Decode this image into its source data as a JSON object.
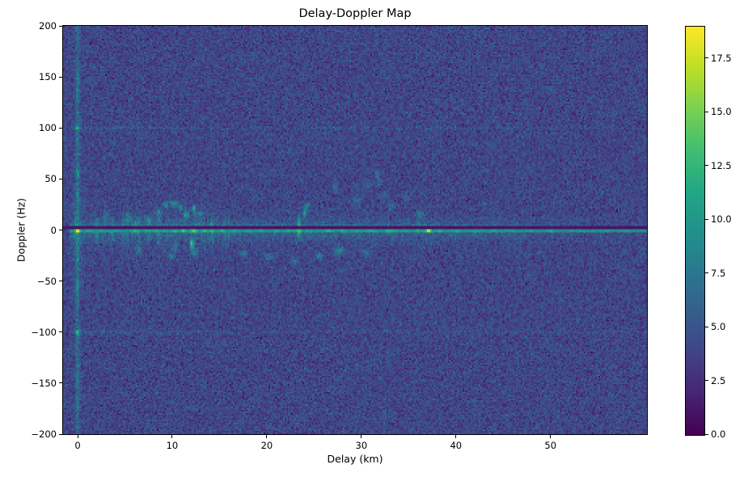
{
  "chart_data": {
    "type": "heatmap",
    "title": "Delay-Doppler Map",
    "xlabel": "Delay (km)",
    "ylabel": "Doppler (Hz)",
    "colormap": "viridis",
    "x_range_km": [
      -1.54,
      60.2
    ],
    "y_range_hz": [
      -200,
      200
    ],
    "x_ticks": [
      0,
      10,
      20,
      30,
      40,
      50
    ],
    "x_tick_labels": [
      "0",
      "10",
      "20",
      "30",
      "40",
      "50"
    ],
    "y_ticks": [
      200,
      150,
      100,
      50,
      0,
      -50,
      -100,
      -150,
      -200
    ],
    "y_tick_labels": [
      "200",
      "150",
      "100",
      "50",
      "0",
      "−50",
      "−100",
      "−150",
      "−200"
    ],
    "colorbar": {
      "vmin": 0.0,
      "vmax": 19.0,
      "ticks": [
        0.0,
        2.5,
        5.0,
        7.5,
        10.0,
        12.5,
        15.0,
        17.5
      ],
      "tick_labels": [
        "0.0",
        "2.5",
        "5.0",
        "7.5",
        "10.0",
        "12.5",
        "15.0",
        "17.5"
      ]
    },
    "colormap_stops": [
      [
        0.0,
        68,
        1,
        84
      ],
      [
        0.1,
        72,
        36,
        117
      ],
      [
        0.2,
        65,
        68,
        135
      ],
      [
        0.3,
        53,
        95,
        141
      ],
      [
        0.4,
        42,
        120,
        142
      ],
      [
        0.5,
        33,
        145,
        140
      ],
      [
        0.6,
        34,
        168,
        132
      ],
      [
        0.7,
        66,
        190,
        113
      ],
      [
        0.8,
        122,
        209,
        81
      ],
      [
        0.9,
        189,
        223,
        38
      ],
      [
        1.0,
        253,
        231,
        37
      ]
    ],
    "noise_floor": {
      "mean": 4.0,
      "std": 1.05,
      "seed": 1234
    },
    "features": {
      "zero_doppler_ridge": {
        "doppler_hz": -1,
        "base_value": 9.5,
        "hotspots": [
          [
            0.0,
            9.5,
            0.25
          ],
          [
            1.2,
            2.0,
            0.3
          ],
          [
            2.5,
            1.5,
            0.3
          ],
          [
            4.0,
            1.0,
            0.4
          ],
          [
            6.1,
            3.0,
            0.3
          ],
          [
            7.3,
            1.5,
            0.3
          ],
          [
            8.3,
            2.0,
            0.3
          ],
          [
            9.2,
            1.5,
            0.3
          ],
          [
            10.3,
            3.0,
            0.3
          ],
          [
            11.2,
            3.5,
            0.3
          ],
          [
            12.3,
            4.5,
            0.35
          ],
          [
            13.4,
            3.0,
            0.3
          ],
          [
            14.2,
            2.0,
            0.3
          ],
          [
            15.3,
            2.5,
            0.25
          ],
          [
            16.5,
            1.0,
            0.3
          ],
          [
            18.0,
            1.2,
            0.4
          ],
          [
            19.5,
            1.2,
            0.4
          ],
          [
            21.0,
            1.5,
            0.3
          ],
          [
            22.3,
            2.0,
            0.3
          ],
          [
            23.4,
            4.0,
            0.25
          ],
          [
            24.5,
            1.5,
            0.3
          ],
          [
            26.5,
            2.0,
            0.4
          ],
          [
            28.0,
            1.5,
            0.4
          ],
          [
            29.5,
            1.5,
            0.3
          ],
          [
            31.0,
            2.0,
            0.4
          ],
          [
            33.0,
            2.5,
            0.4
          ],
          [
            34.5,
            1.5,
            0.3
          ],
          [
            36.0,
            2.0,
            0.3
          ],
          [
            37.1,
            7.5,
            0.3
          ],
          [
            38.3,
            2.0,
            0.3
          ],
          [
            40.0,
            1.5,
            0.4
          ],
          [
            42.0,
            1.0,
            0.4
          ],
          [
            44.0,
            1.5,
            0.4
          ],
          [
            46.0,
            1.0,
            0.4
          ],
          [
            48.0,
            1.0,
            0.4
          ],
          [
            50.0,
            1.0,
            0.4
          ],
          [
            53.0,
            0.8,
            0.4
          ],
          [
            56.0,
            0.8,
            0.4
          ],
          [
            58.0,
            0.8,
            0.4
          ]
        ]
      },
      "zero_doppler_notch": {
        "doppler_hz": 1.8,
        "value": 1.0
      },
      "direct_path_column_delay_km": 0,
      "ambiguity_lines_hz": [
        100,
        -100
      ],
      "blobs": [
        [
          8.6,
          17,
          4.5,
          0.35,
          3
        ],
        [
          9.3,
          24,
          5.0,
          0.3,
          3
        ],
        [
          10.2,
          26,
          5.5,
          0.4,
          2.5
        ],
        [
          10.9,
          22,
          5.0,
          0.3,
          3
        ],
        [
          11.5,
          15,
          6.0,
          0.3,
          4
        ],
        [
          12.3,
          21,
          6.5,
          0.25,
          4
        ],
        [
          13.0,
          16,
          4.0,
          0.3,
          3
        ],
        [
          7.5,
          10,
          3.0,
          0.4,
          4
        ],
        [
          5.5,
          12,
          2.5,
          0.4,
          5
        ],
        [
          3.0,
          14,
          2.5,
          0.3,
          6
        ],
        [
          6.1,
          4,
          4.0,
          0.2,
          5
        ],
        [
          12.1,
          -14,
          9.0,
          0.22,
          5
        ],
        [
          12.4,
          -23,
          4.0,
          0.3,
          4
        ],
        [
          9.9,
          -26,
          4.5,
          0.35,
          3
        ],
        [
          10.3,
          -17,
          3.5,
          0.3,
          5
        ],
        [
          6.5,
          -20,
          2.5,
          0.4,
          5
        ],
        [
          17.6,
          -23,
          3.5,
          0.4,
          3
        ],
        [
          20.3,
          -26,
          3.5,
          0.5,
          3
        ],
        [
          25.6,
          -26,
          4.0,
          0.45,
          3
        ],
        [
          27.7,
          -20,
          4.0,
          0.5,
          4
        ],
        [
          23.0,
          -31,
          3.0,
          0.4,
          3
        ],
        [
          30.5,
          -22,
          2.5,
          0.5,
          3
        ],
        [
          23.4,
          6,
          6.0,
          0.18,
          7
        ],
        [
          23.4,
          -4,
          5.0,
          0.18,
          5
        ],
        [
          24.0,
          17,
          5.0,
          0.22,
          6
        ],
        [
          24.3,
          24,
          4.0,
          0.2,
          4
        ],
        [
          27.2,
          41,
          2.8,
          0.3,
          5
        ],
        [
          31.8,
          52,
          3.2,
          0.25,
          7
        ],
        [
          30.8,
          44,
          2.5,
          0.3,
          4
        ],
        [
          34.8,
          33,
          2.8,
          0.35,
          4
        ],
        [
          33.2,
          24,
          3.0,
          0.4,
          4
        ],
        [
          36.2,
          16,
          3.5,
          0.4,
          4
        ],
        [
          29.5,
          28,
          2.6,
          0.4,
          4
        ],
        [
          32.5,
          35,
          2.4,
          0.3,
          4
        ],
        [
          0,
          100,
          5.5,
          0.25,
          2.5
        ],
        [
          0,
          -100,
          6.0,
          0.25,
          2.5
        ],
        [
          0,
          55,
          3.0,
          0.2,
          4
        ],
        [
          0,
          150,
          2.5,
          0.2,
          3
        ],
        [
          0,
          -150,
          2.0,
          0.2,
          3
        ],
        [
          0,
          -55,
          2.5,
          0.2,
          4
        ]
      ]
    }
  }
}
